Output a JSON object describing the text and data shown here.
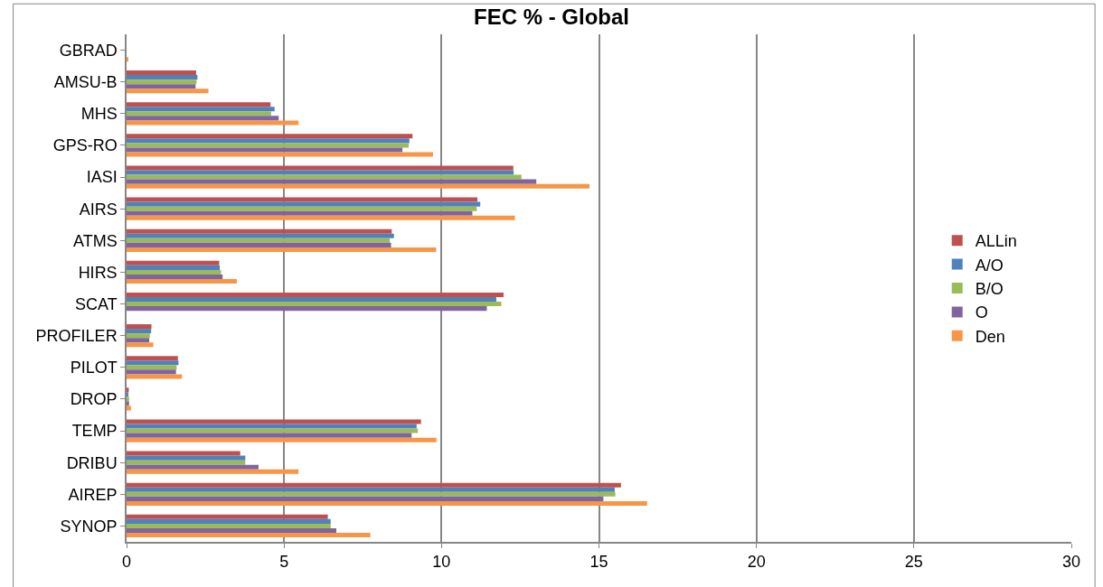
{
  "chart_data": {
    "type": "bar",
    "orientation": "horizontal",
    "title": "FEC % - Global",
    "categories": [
      "GBRAD",
      "AMSU-B",
      "MHS",
      "GPS-RO",
      "IASI",
      "AIRS",
      "ATMS",
      "HIRS",
      "SCAT",
      "PROFILER",
      "PILOT",
      "DROP",
      "TEMP",
      "DRIBU",
      "AIREP",
      "SYNOP"
    ],
    "series": [
      {
        "name": "ALLin",
        "color": "#c0504d",
        "values": [
          0,
          2.21,
          4.57,
          9.08,
          12.28,
          11.14,
          8.42,
          2.94,
          11.97,
          0.79,
          1.63,
          0.07,
          9.35,
          3.61,
          15.7,
          6.39
        ]
      },
      {
        "name": "A/O",
        "color": "#4f81bd",
        "values": [
          0,
          2.25,
          4.7,
          8.98,
          12.29,
          11.23,
          8.49,
          2.96,
          11.74,
          0.78,
          1.65,
          0.06,
          9.21,
          3.77,
          15.5,
          6.48
        ]
      },
      {
        "name": "B/O",
        "color": "#9bbb59",
        "values": [
          0,
          2.22,
          4.59,
          8.96,
          12.54,
          11.12,
          8.36,
          3.0,
          11.9,
          0.74,
          1.59,
          0.08,
          9.25,
          3.77,
          15.52,
          6.48
        ]
      },
      {
        "name": "O",
        "color": "#8064a2",
        "values": [
          0,
          2.19,
          4.83,
          8.76,
          13.01,
          10.98,
          8.4,
          3.05,
          11.44,
          0.72,
          1.57,
          0.08,
          9.05,
          4.19,
          15.14,
          6.66
        ]
      },
      {
        "name": "Den",
        "color": "#f79646",
        "values": [
          0.03,
          2.6,
          5.46,
          9.73,
          14.7,
          12.33,
          9.83,
          3.5,
          null,
          0.85,
          1.76,
          0.14,
          9.84,
          5.46,
          16.53,
          7.74
        ]
      }
    ],
    "xlim": [
      0,
      30
    ],
    "xticks": [
      0,
      5,
      10,
      15,
      20,
      25,
      30
    ],
    "grid": "x",
    "legend": "right"
  }
}
